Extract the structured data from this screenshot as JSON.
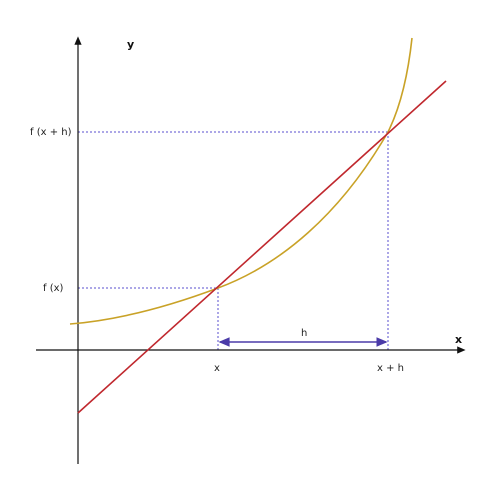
{
  "axes": {
    "x_label": "x",
    "y_label": "y"
  },
  "labels": {
    "fx": "f (x)",
    "fxh": "f (x + h)",
    "x_tick": "x",
    "xh_tick": "x + h",
    "h": "h"
  },
  "colors": {
    "axis": "#111111",
    "curve": "#c9a227",
    "secant": "#c0282e",
    "guide": "#5a4fcf",
    "h_bracket": "#4b3ba8"
  }
}
